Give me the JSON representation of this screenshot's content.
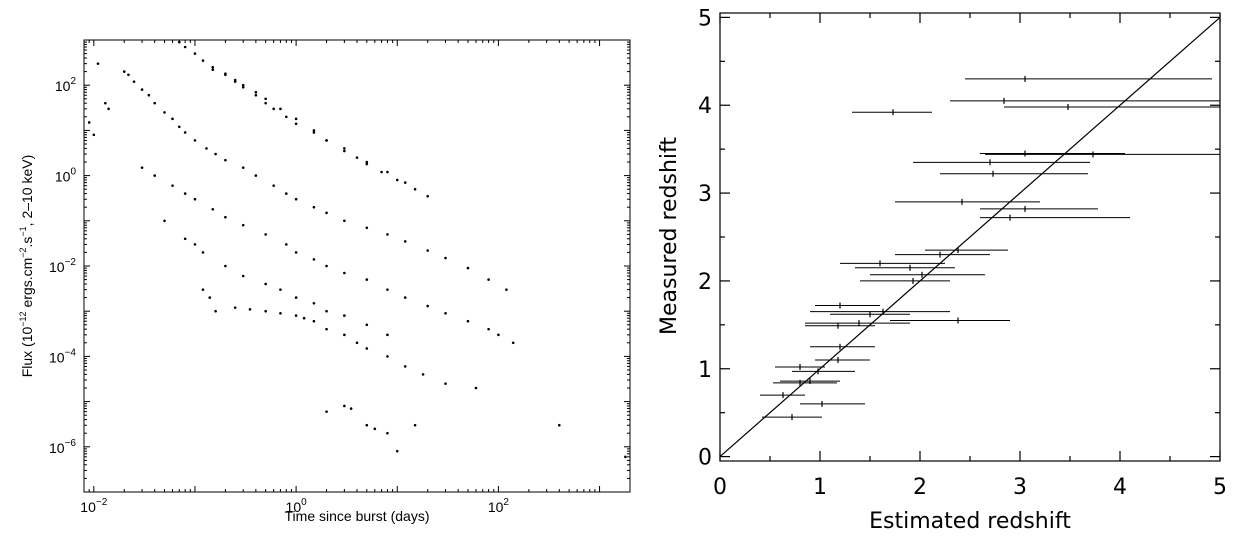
{
  "chart_data": [
    {
      "type": "scatter",
      "title": "",
      "xlabel": "Time since burst (days)",
      "ylabel": "Flux (10^-12 ergs.cm^-2.s^-1, 2-10 keV)",
      "ylabel_parts": {
        "prefix": "Flux (10",
        "exp1": "−12",
        "mid1": " ergs.cm",
        "exp2": "−2",
        "mid2": ".s",
        "exp3": "−1",
        "suffix": ", 2–10 keV)"
      },
      "xscale": "log",
      "yscale": "log",
      "xlim": [
        0.008,
        2000
      ],
      "ylim": [
        1e-07,
        1000
      ],
      "x_ticks": [
        0.01,
        1,
        100
      ],
      "x_tick_labels": [
        {
          "base": "10",
          "exp": "−2"
        },
        {
          "base": "10",
          "exp": "0"
        },
        {
          "base": "10",
          "exp": "2"
        }
      ],
      "y_ticks": [
        1e-06,
        0.0001,
        0.01,
        1,
        100
      ],
      "y_tick_labels": [
        {
          "base": "10",
          "exp": "−6"
        },
        {
          "base": "10",
          "exp": "−4"
        },
        {
          "base": "10",
          "exp": "−2"
        },
        {
          "base": "10",
          "exp": "0"
        },
        {
          "base": "10",
          "exp": "2"
        }
      ],
      "grid": false,
      "legend": "none",
      "series": [
        {
          "points": [
            [
              0.009,
              15
            ],
            [
              0.01,
              8
            ],
            [
              0.011,
              300
            ],
            [
              0.013,
              40
            ],
            [
              0.014,
              30
            ],
            [
              0.02,
              200
            ],
            [
              0.022,
              170
            ],
            [
              0.025,
              120
            ],
            [
              0.03,
              80
            ],
            [
              0.035,
              60
            ],
            [
              0.04,
              40
            ],
            [
              0.05,
              25
            ],
            [
              0.06,
              18
            ],
            [
              0.07,
              12
            ],
            [
              0.08,
              9
            ],
            [
              0.1,
              6
            ],
            [
              0.13,
              4
            ],
            [
              0.16,
              3
            ],
            [
              0.2,
              2.2
            ],
            [
              0.3,
              1.5
            ],
            [
              0.4,
              1
            ],
            [
              0.6,
              0.6
            ],
            [
              0.8,
              0.4
            ],
            [
              1,
              0.3
            ],
            [
              1.5,
              0.2
            ],
            [
              2,
              0.15
            ],
            [
              3,
              0.1
            ],
            [
              5,
              0.07
            ],
            [
              8,
              0.05
            ],
            [
              12,
              0.035
            ],
            [
              20,
              0.022
            ],
            [
              30,
              0.015
            ],
            [
              50,
              0.009
            ],
            [
              80,
              0.005
            ],
            [
              120,
              0.003
            ]
          ]
        },
        {
          "points": [
            [
              0.07,
              900
            ],
            [
              0.08,
              700
            ],
            [
              0.1,
              500
            ],
            [
              0.12,
              350
            ],
            [
              0.15,
              250
            ],
            [
              0.2,
              180
            ],
            [
              0.25,
              130
            ],
            [
              0.3,
              90
            ],
            [
              0.4,
              60
            ],
            [
              0.5,
              40
            ],
            [
              0.6,
              30
            ],
            [
              0.8,
              20
            ],
            [
              1,
              14
            ],
            [
              1.5,
              9
            ],
            [
              2,
              6
            ],
            [
              3,
              4
            ],
            [
              4,
              2.5
            ],
            [
              5,
              1.8
            ],
            [
              7,
              1.2
            ],
            [
              10,
              0.8
            ],
            [
              15,
              0.5
            ],
            [
              20,
              0.35
            ]
          ]
        },
        {
          "points": [
            [
              0.15,
              220
            ],
            [
              0.2,
              170
            ],
            [
              0.25,
              120
            ],
            [
              0.3,
              100
            ],
            [
              0.4,
              70
            ],
            [
              0.5,
              50
            ],
            [
              0.7,
              30
            ],
            [
              1,
              18
            ],
            [
              1.5,
              10
            ],
            [
              2,
              6
            ],
            [
              3,
              3.5
            ],
            [
              5,
              2
            ],
            [
              8,
              1.2
            ],
            [
              12,
              0.7
            ]
          ]
        },
        {
          "points": [
            [
              0.03,
              1.5
            ],
            [
              0.04,
              1
            ],
            [
              0.06,
              0.6
            ],
            [
              0.08,
              0.4
            ],
            [
              0.1,
              0.3
            ],
            [
              0.15,
              0.18
            ],
            [
              0.2,
              0.12
            ],
            [
              0.3,
              0.08
            ],
            [
              0.5,
              0.05
            ],
            [
              0.8,
              0.03
            ],
            [
              1,
              0.02
            ],
            [
              1.5,
              0.014
            ],
            [
              2,
              0.01
            ],
            [
              3,
              0.007
            ],
            [
              5,
              0.005
            ],
            [
              8,
              0.003
            ],
            [
              12,
              0.002
            ],
            [
              20,
              0.0013
            ],
            [
              30,
              0.0009
            ],
            [
              50,
              0.0006
            ],
            [
              80,
              0.0004
            ],
            [
              100,
              0.0003
            ],
            [
              140,
              0.0002
            ]
          ]
        },
        {
          "points": [
            [
              0.05,
              0.1
            ],
            [
              0.08,
              0.04
            ],
            [
              0.1,
              0.03
            ],
            [
              0.12,
              0.02
            ],
            [
              0.2,
              0.01
            ],
            [
              0.3,
              0.006
            ],
            [
              0.5,
              0.004
            ],
            [
              0.7,
              0.003
            ],
            [
              1,
              0.002
            ],
            [
              1.5,
              0.0015
            ],
            [
              2,
              0.001
            ],
            [
              3,
              0.0008
            ],
            [
              5,
              0.0005
            ],
            [
              8,
              0.0003
            ]
          ]
        },
        {
          "points": [
            [
              0.12,
              0.003
            ],
            [
              0.14,
              0.002
            ],
            [
              0.16,
              0.001
            ],
            [
              0.25,
              0.0012
            ],
            [
              0.35,
              0.0011
            ],
            [
              0.5,
              0.001
            ],
            [
              0.7,
              0.0009
            ],
            [
              1,
              0.0008
            ],
            [
              1.2,
              0.0007
            ],
            [
              1.5,
              0.0006
            ],
            [
              2,
              0.0004
            ],
            [
              3,
              0.0003
            ],
            [
              4,
              0.0002
            ],
            [
              5,
              0.00015
            ],
            [
              8,
              0.0001
            ],
            [
              12,
              6e-05
            ],
            [
              18,
              4e-05
            ],
            [
              30,
              2.5e-05
            ]
          ]
        },
        {
          "points": [
            [
              2,
              6e-06
            ],
            [
              3,
              8e-06
            ],
            [
              3.5,
              7e-06
            ],
            [
              5,
              3e-06
            ],
            [
              6,
              2.5e-06
            ],
            [
              8,
              2e-06
            ],
            [
              10,
              8e-07
            ],
            [
              15,
              3e-06
            ],
            [
              60,
              2e-05
            ],
            [
              400,
              3e-06
            ],
            [
              1800,
              6e-07
            ]
          ]
        }
      ]
    },
    {
      "type": "scatter",
      "title": "",
      "xlabel": "Estimated redshift",
      "ylabel": "Measured redshift",
      "xlim": [
        0,
        5
      ],
      "ylim": [
        -0.05,
        5.05
      ],
      "x_ticks": [
        0,
        1,
        2,
        3,
        4,
        5
      ],
      "y_ticks": [
        0,
        1,
        2,
        3,
        4,
        5
      ],
      "grid": false,
      "legend": "none",
      "reference_line": {
        "x": [
          0,
          5
        ],
        "y": [
          0,
          5
        ]
      },
      "points": [
        {
          "x": 0.72,
          "y": 0.45,
          "xmin": 0.42,
          "xmax": 1.02
        },
        {
          "x": 1.02,
          "y": 0.6,
          "xmin": 0.8,
          "xmax": 1.45
        },
        {
          "x": 0.63,
          "y": 0.7,
          "xmin": 0.4,
          "xmax": 0.85
        },
        {
          "x": 0.8,
          "y": 0.84,
          "xmin": 0.53,
          "xmax": 1.17
        },
        {
          "x": 0.9,
          "y": 0.86,
          "xmin": 0.6,
          "xmax": 1.2
        },
        {
          "x": 0.98,
          "y": 0.97,
          "xmin": 0.72,
          "xmax": 1.35
        },
        {
          "x": 0.8,
          "y": 1.02,
          "xmin": 0.55,
          "xmax": 1.05
        },
        {
          "x": 1.18,
          "y": 1.1,
          "xmin": 0.95,
          "xmax": 1.5
        },
        {
          "x": 1.2,
          "y": 1.25,
          "xmin": 0.9,
          "xmax": 1.55
        },
        {
          "x": 1.18,
          "y": 1.49,
          "xmin": 0.85,
          "xmax": 1.55
        },
        {
          "x": 1.39,
          "y": 1.52,
          "xmin": 0.85,
          "xmax": 1.9
        },
        {
          "x": 1.5,
          "y": 1.62,
          "xmin": 1.1,
          "xmax": 1.9
        },
        {
          "x": 1.63,
          "y": 1.65,
          "xmin": 0.9,
          "xmax": 2.3
        },
        {
          "x": 2.38,
          "y": 1.55,
          "xmin": 1.7,
          "xmax": 2.9
        },
        {
          "x": 1.2,
          "y": 1.72,
          "xmin": 0.95,
          "xmax": 1.6
        },
        {
          "x": 1.93,
          "y": 2.0,
          "xmin": 1.4,
          "xmax": 2.3
        },
        {
          "x": 2.02,
          "y": 2.07,
          "xmin": 1.5,
          "xmax": 2.65
        },
        {
          "x": 1.9,
          "y": 2.15,
          "xmin": 1.35,
          "xmax": 2.35
        },
        {
          "x": 1.6,
          "y": 2.2,
          "xmin": 1.2,
          "xmax": 2.25
        },
        {
          "x": 2.2,
          "y": 2.3,
          "xmin": 1.75,
          "xmax": 2.7
        },
        {
          "x": 2.38,
          "y": 2.35,
          "xmin": 2.05,
          "xmax": 2.88
        },
        {
          "x": 3.05,
          "y": 2.82,
          "xmin": 2.6,
          "xmax": 3.78
        },
        {
          "x": 2.9,
          "y": 2.72,
          "xmin": 2.6,
          "xmax": 4.1
        },
        {
          "x": 2.42,
          "y": 2.9,
          "xmin": 1.75,
          "xmax": 3.2
        },
        {
          "x": 2.73,
          "y": 3.22,
          "xmin": 2.2,
          "xmax": 3.68
        },
        {
          "x": 2.7,
          "y": 3.35,
          "xmin": 1.93,
          "xmax": 3.7
        },
        {
          "x": 3.05,
          "y": 3.45,
          "xmin": 2.6,
          "xmax": 4.05
        },
        {
          "x": 3.73,
          "y": 3.44,
          "xmin": 2.65,
          "xmax": 5.0
        },
        {
          "x": 1.73,
          "y": 3.92,
          "xmin": 1.32,
          "xmax": 2.12
        },
        {
          "x": 3.48,
          "y": 3.98,
          "xmin": 2.84,
          "xmax": 5.0
        },
        {
          "x": 2.84,
          "y": 4.05,
          "xmin": 2.3,
          "xmax": 5.0
        },
        {
          "x": 3.05,
          "y": 4.3,
          "xmin": 2.45,
          "xmax": 4.92
        }
      ]
    }
  ]
}
